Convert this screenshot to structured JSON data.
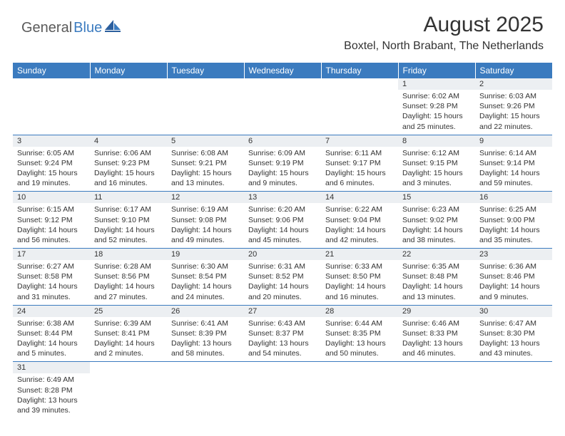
{
  "logo": {
    "part1": "General",
    "part2": "Blue"
  },
  "title": "August 2025",
  "location": "Boxtel, North Brabant, The Netherlands",
  "colors": {
    "header_bg": "#3b7bbf",
    "header_text": "#ffffff",
    "daynum_bg": "#eceff2",
    "text": "#333333",
    "border": "#3b7bbf",
    "logo_gray": "#5a5a5a",
    "logo_blue": "#3b7bbf"
  },
  "weekdays": [
    "Sunday",
    "Monday",
    "Tuesday",
    "Wednesday",
    "Thursday",
    "Friday",
    "Saturday"
  ],
  "weeks": [
    {
      "nums": [
        "",
        "",
        "",
        "",
        "",
        "1",
        "2"
      ],
      "cells": [
        null,
        null,
        null,
        null,
        null,
        {
          "sunrise": "Sunrise: 6:02 AM",
          "sunset": "Sunset: 9:28 PM",
          "day1": "Daylight: 15 hours",
          "day2": "and 25 minutes."
        },
        {
          "sunrise": "Sunrise: 6:03 AM",
          "sunset": "Sunset: 9:26 PM",
          "day1": "Daylight: 15 hours",
          "day2": "and 22 minutes."
        }
      ]
    },
    {
      "nums": [
        "3",
        "4",
        "5",
        "6",
        "7",
        "8",
        "9"
      ],
      "cells": [
        {
          "sunrise": "Sunrise: 6:05 AM",
          "sunset": "Sunset: 9:24 PM",
          "day1": "Daylight: 15 hours",
          "day2": "and 19 minutes."
        },
        {
          "sunrise": "Sunrise: 6:06 AM",
          "sunset": "Sunset: 9:23 PM",
          "day1": "Daylight: 15 hours",
          "day2": "and 16 minutes."
        },
        {
          "sunrise": "Sunrise: 6:08 AM",
          "sunset": "Sunset: 9:21 PM",
          "day1": "Daylight: 15 hours",
          "day2": "and 13 minutes."
        },
        {
          "sunrise": "Sunrise: 6:09 AM",
          "sunset": "Sunset: 9:19 PM",
          "day1": "Daylight: 15 hours",
          "day2": "and 9 minutes."
        },
        {
          "sunrise": "Sunrise: 6:11 AM",
          "sunset": "Sunset: 9:17 PM",
          "day1": "Daylight: 15 hours",
          "day2": "and 6 minutes."
        },
        {
          "sunrise": "Sunrise: 6:12 AM",
          "sunset": "Sunset: 9:15 PM",
          "day1": "Daylight: 15 hours",
          "day2": "and 3 minutes."
        },
        {
          "sunrise": "Sunrise: 6:14 AM",
          "sunset": "Sunset: 9:14 PM",
          "day1": "Daylight: 14 hours",
          "day2": "and 59 minutes."
        }
      ]
    },
    {
      "nums": [
        "10",
        "11",
        "12",
        "13",
        "14",
        "15",
        "16"
      ],
      "cells": [
        {
          "sunrise": "Sunrise: 6:15 AM",
          "sunset": "Sunset: 9:12 PM",
          "day1": "Daylight: 14 hours",
          "day2": "and 56 minutes."
        },
        {
          "sunrise": "Sunrise: 6:17 AM",
          "sunset": "Sunset: 9:10 PM",
          "day1": "Daylight: 14 hours",
          "day2": "and 52 minutes."
        },
        {
          "sunrise": "Sunrise: 6:19 AM",
          "sunset": "Sunset: 9:08 PM",
          "day1": "Daylight: 14 hours",
          "day2": "and 49 minutes."
        },
        {
          "sunrise": "Sunrise: 6:20 AM",
          "sunset": "Sunset: 9:06 PM",
          "day1": "Daylight: 14 hours",
          "day2": "and 45 minutes."
        },
        {
          "sunrise": "Sunrise: 6:22 AM",
          "sunset": "Sunset: 9:04 PM",
          "day1": "Daylight: 14 hours",
          "day2": "and 42 minutes."
        },
        {
          "sunrise": "Sunrise: 6:23 AM",
          "sunset": "Sunset: 9:02 PM",
          "day1": "Daylight: 14 hours",
          "day2": "and 38 minutes."
        },
        {
          "sunrise": "Sunrise: 6:25 AM",
          "sunset": "Sunset: 9:00 PM",
          "day1": "Daylight: 14 hours",
          "day2": "and 35 minutes."
        }
      ]
    },
    {
      "nums": [
        "17",
        "18",
        "19",
        "20",
        "21",
        "22",
        "23"
      ],
      "cells": [
        {
          "sunrise": "Sunrise: 6:27 AM",
          "sunset": "Sunset: 8:58 PM",
          "day1": "Daylight: 14 hours",
          "day2": "and 31 minutes."
        },
        {
          "sunrise": "Sunrise: 6:28 AM",
          "sunset": "Sunset: 8:56 PM",
          "day1": "Daylight: 14 hours",
          "day2": "and 27 minutes."
        },
        {
          "sunrise": "Sunrise: 6:30 AM",
          "sunset": "Sunset: 8:54 PM",
          "day1": "Daylight: 14 hours",
          "day2": "and 24 minutes."
        },
        {
          "sunrise": "Sunrise: 6:31 AM",
          "sunset": "Sunset: 8:52 PM",
          "day1": "Daylight: 14 hours",
          "day2": "and 20 minutes."
        },
        {
          "sunrise": "Sunrise: 6:33 AM",
          "sunset": "Sunset: 8:50 PM",
          "day1": "Daylight: 14 hours",
          "day2": "and 16 minutes."
        },
        {
          "sunrise": "Sunrise: 6:35 AM",
          "sunset": "Sunset: 8:48 PM",
          "day1": "Daylight: 14 hours",
          "day2": "and 13 minutes."
        },
        {
          "sunrise": "Sunrise: 6:36 AM",
          "sunset": "Sunset: 8:46 PM",
          "day1": "Daylight: 14 hours",
          "day2": "and 9 minutes."
        }
      ]
    },
    {
      "nums": [
        "24",
        "25",
        "26",
        "27",
        "28",
        "29",
        "30"
      ],
      "cells": [
        {
          "sunrise": "Sunrise: 6:38 AM",
          "sunset": "Sunset: 8:44 PM",
          "day1": "Daylight: 14 hours",
          "day2": "and 5 minutes."
        },
        {
          "sunrise": "Sunrise: 6:39 AM",
          "sunset": "Sunset: 8:41 PM",
          "day1": "Daylight: 14 hours",
          "day2": "and 2 minutes."
        },
        {
          "sunrise": "Sunrise: 6:41 AM",
          "sunset": "Sunset: 8:39 PM",
          "day1": "Daylight: 13 hours",
          "day2": "and 58 minutes."
        },
        {
          "sunrise": "Sunrise: 6:43 AM",
          "sunset": "Sunset: 8:37 PM",
          "day1": "Daylight: 13 hours",
          "day2": "and 54 minutes."
        },
        {
          "sunrise": "Sunrise: 6:44 AM",
          "sunset": "Sunset: 8:35 PM",
          "day1": "Daylight: 13 hours",
          "day2": "and 50 minutes."
        },
        {
          "sunrise": "Sunrise: 6:46 AM",
          "sunset": "Sunset: 8:33 PM",
          "day1": "Daylight: 13 hours",
          "day2": "and 46 minutes."
        },
        {
          "sunrise": "Sunrise: 6:47 AM",
          "sunset": "Sunset: 8:30 PM",
          "day1": "Daylight: 13 hours",
          "day2": "and 43 minutes."
        }
      ]
    },
    {
      "nums": [
        "31",
        "",
        "",
        "",
        "",
        "",
        ""
      ],
      "cells": [
        {
          "sunrise": "Sunrise: 6:49 AM",
          "sunset": "Sunset: 8:28 PM",
          "day1": "Daylight: 13 hours",
          "day2": "and 39 minutes."
        },
        null,
        null,
        null,
        null,
        null,
        null
      ]
    }
  ]
}
